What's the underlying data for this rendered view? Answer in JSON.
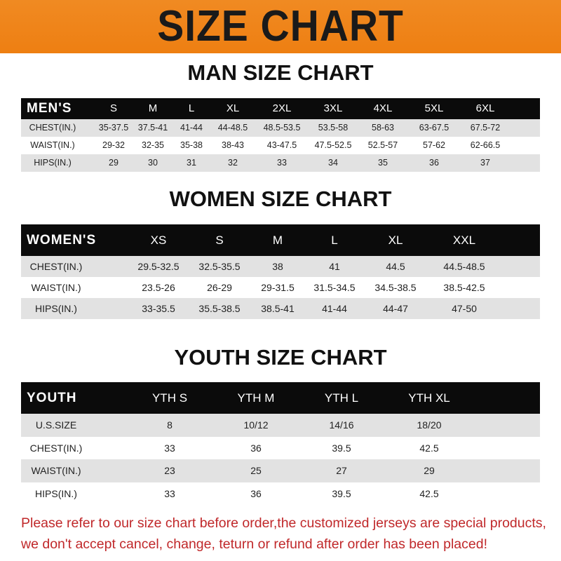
{
  "banner_title": "SIZE CHART",
  "men": {
    "title": "MAN SIZE CHART",
    "header": [
      "MEN'S",
      "S",
      "M",
      "L",
      "XL",
      "2XL",
      "3XL",
      "4XL",
      "5XL",
      "6XL"
    ],
    "rows": [
      [
        "CHEST(IN.)",
        "35-37.5",
        "37.5-41",
        "41-44",
        "44-48.5",
        "48.5-53.5",
        "53.5-58",
        "58-63",
        "63-67.5",
        "67.5-72"
      ],
      [
        "WAIST(IN.)",
        "29-32",
        "32-35",
        "35-38",
        "38-43",
        "43-47.5",
        "47.5-52.5",
        "52.5-57",
        "57-62",
        "62-66.5"
      ],
      [
        "HIPS(IN.)",
        "29",
        "30",
        "31",
        "32",
        "33",
        "34",
        "35",
        "36",
        "37"
      ]
    ]
  },
  "women": {
    "title": "WOMEN SIZE CHART",
    "header": [
      "WOMEN'S",
      "XS",
      "S",
      "M",
      "L",
      "XL",
      "XXL"
    ],
    "rows": [
      [
        "CHEST(IN.)",
        "29.5-32.5",
        "32.5-35.5",
        "38",
        "41",
        "44.5",
        "44.5-48.5"
      ],
      [
        "WAIST(IN.)",
        "23.5-26",
        "26-29",
        "29-31.5",
        "31.5-34.5",
        "34.5-38.5",
        "38.5-42.5"
      ],
      [
        "HIPS(IN.)",
        "33-35.5",
        "35.5-38.5",
        "38.5-41",
        "41-44",
        "44-47",
        "47-50"
      ]
    ]
  },
  "youth": {
    "title": "YOUTH SIZE CHART",
    "header": [
      "YOUTH",
      "YTH S",
      "YTH M",
      "YTH L",
      "YTH XL"
    ],
    "rows": [
      [
        "U.S.SIZE",
        "8",
        "10/12",
        "14/16",
        "18/20"
      ],
      [
        "CHEST(IN.)",
        "33",
        "36",
        "39.5",
        "42.5"
      ],
      [
        "WAIST(IN.)",
        "23",
        "25",
        "27",
        "29"
      ],
      [
        "HIPS(IN.)",
        "33",
        "36",
        "39.5",
        "42.5"
      ]
    ]
  },
  "notice": {
    "line1": "Please refer to our size chart before order,the customized jerseys are special products,",
    "line2": "we don't accept cancel, change, teturn or refund after order has been placed!"
  },
  "colors": {
    "banner": "#ee7f12",
    "header_row": "#0b0b0b",
    "stripe": "#e2e2e2",
    "notice": "#c0282a"
  }
}
